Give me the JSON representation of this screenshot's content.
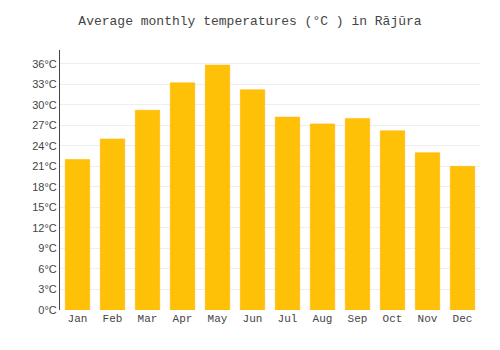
{
  "chart_data": {
    "type": "bar",
    "title": "Average monthly temperatures (°C ) in Rājūra",
    "categories": [
      "Jan",
      "Feb",
      "Mar",
      "Apr",
      "May",
      "Jun",
      "Jul",
      "Aug",
      "Sep",
      "Oct",
      "Nov",
      "Dec"
    ],
    "values": [
      22.0,
      25.0,
      29.2,
      33.2,
      35.8,
      32.2,
      28.2,
      27.2,
      28.0,
      26.2,
      23.0,
      21.0
    ],
    "color": "#FFC107",
    "ylim": [
      0,
      38
    ],
    "yticks": [
      {
        "value": 0,
        "label": "0°C"
      },
      {
        "value": 3,
        "label": "3°C"
      },
      {
        "value": 6,
        "label": "6°C"
      },
      {
        "value": 9,
        "label": "9°C"
      },
      {
        "value": 12,
        "label": "12°C"
      },
      {
        "value": 15,
        "label": "15°C"
      },
      {
        "value": 18,
        "label": "18°C"
      },
      {
        "value": 21,
        "label": "21°C"
      },
      {
        "value": 24,
        "label": "24°C"
      },
      {
        "value": 27,
        "label": "27°C"
      },
      {
        "value": 30,
        "label": "30°C"
      },
      {
        "value": 33,
        "label": "33°C"
      },
      {
        "value": 36,
        "label": "36°C"
      }
    ],
    "grid": true
  }
}
